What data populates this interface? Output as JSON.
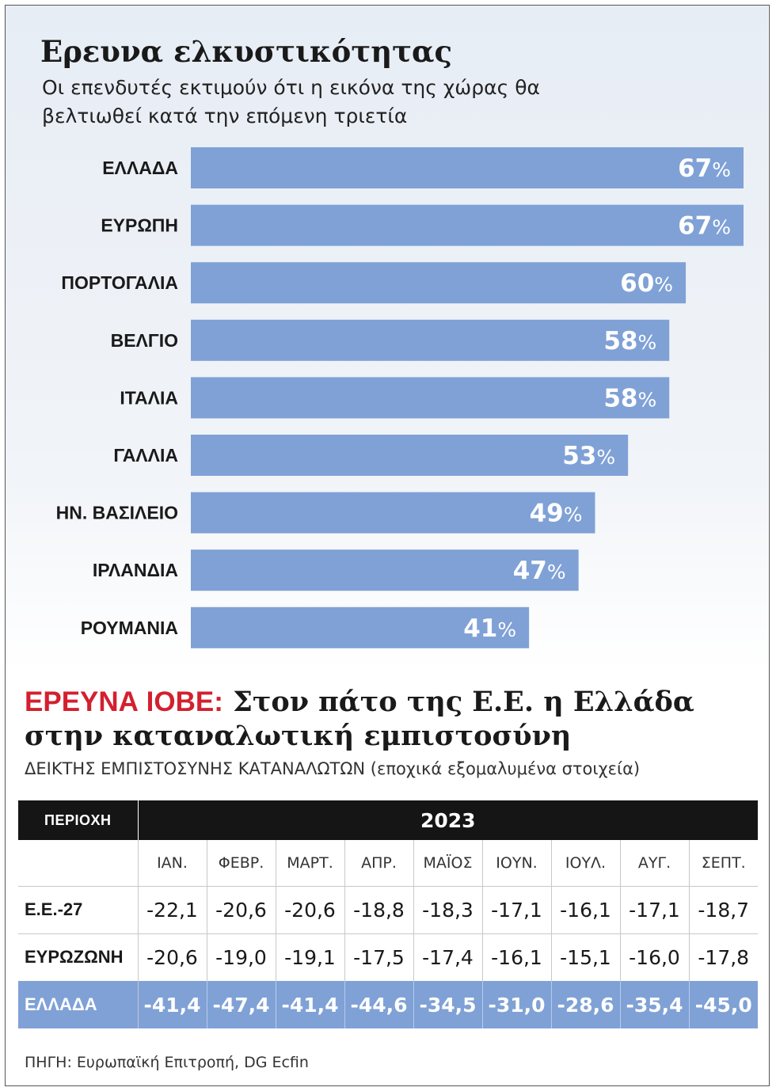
{
  "chart_data": {
    "type": "bar",
    "orientation": "horizontal",
    "title": "Ερευνα ελκυστικότητας",
    "subtitle": "Οι επενδυτές εκτιμούν ότι η εικόνα της χώρας θα βελτιωθεί κατά την επόμενη τριετία",
    "categories": [
      "ΕΛΛΑΔΑ",
      "ΕΥΡΩΠΗ",
      "ΠΟΡΤΟΓΑΛΙΑ",
      "ΒΕΛΓΙΟ",
      "ΙΤΑΛΙΑ",
      "ΓΑΛΛΙΑ",
      "ΗΝ. ΒΑΣΙΛΕΙΟ",
      "ΙΡΛΑΝΔΙΑ",
      "ΡΟΥΜΑΝΙΑ"
    ],
    "values": [
      67,
      67,
      60,
      58,
      58,
      53,
      49,
      47,
      41
    ],
    "unit": "%",
    "xlim": [
      0,
      67
    ],
    "bar_color": "#7fa1d6"
  },
  "table": {
    "title_red": "ΕΡΕΥΝΑ ΙΟΒΕ:",
    "title_rest": " Στον πάτο της Ε.Ε. η Ελλάδα στην καταναλωτική εμπιστοσύνη",
    "subtitle": "ΔΕΙΚΤΗΣ ΕΜΠΙΣΤΟΣΥΝΗΣ ΚΑΤΑΝΑΛΩΤΩΝ (εποχικά εξομαλυμένα στοιχεία)",
    "region_header": "ΠΕΡΙΟΧΗ",
    "year": "2023",
    "months": [
      "ΙΑΝ.",
      "ΦΕΒΡ.",
      "ΜΑΡΤ.",
      "ΑΠΡ.",
      "ΜΑΪΟΣ",
      "ΙΟΥΝ.",
      "ΙΟΥΛ.",
      "ΑΥΓ.",
      "ΣΕΠΤ."
    ],
    "rows": [
      {
        "name": "Ε.Ε.-27",
        "values": [
          "-22,1",
          "-20,6",
          "-20,6",
          "-18,8",
          "-18,3",
          "-17,1",
          "-16,1",
          "-17,1",
          "-18,7"
        ]
      },
      {
        "name": "ΕΥΡΩΖΩΝΗ",
        "values": [
          "-20,6",
          "-19,0",
          "-19,1",
          "-17,5",
          "-17,4",
          "-16,1",
          "-15,1",
          "-16,0",
          "-17,8"
        ]
      },
      {
        "name": "ΕΛΛΑΔΑ",
        "values": [
          "-41,4",
          "-47,4",
          "-41,4",
          "-44,6",
          "-34,5",
          "-31,0",
          "-28,6",
          "-35,4",
          "-45,0"
        ],
        "highlight": true
      }
    ],
    "highlight_color": "#7fa1d6"
  },
  "source": "ΠΗΓΗ: Ευρωπαϊκή Επιτροπή, DG Ecfin"
}
